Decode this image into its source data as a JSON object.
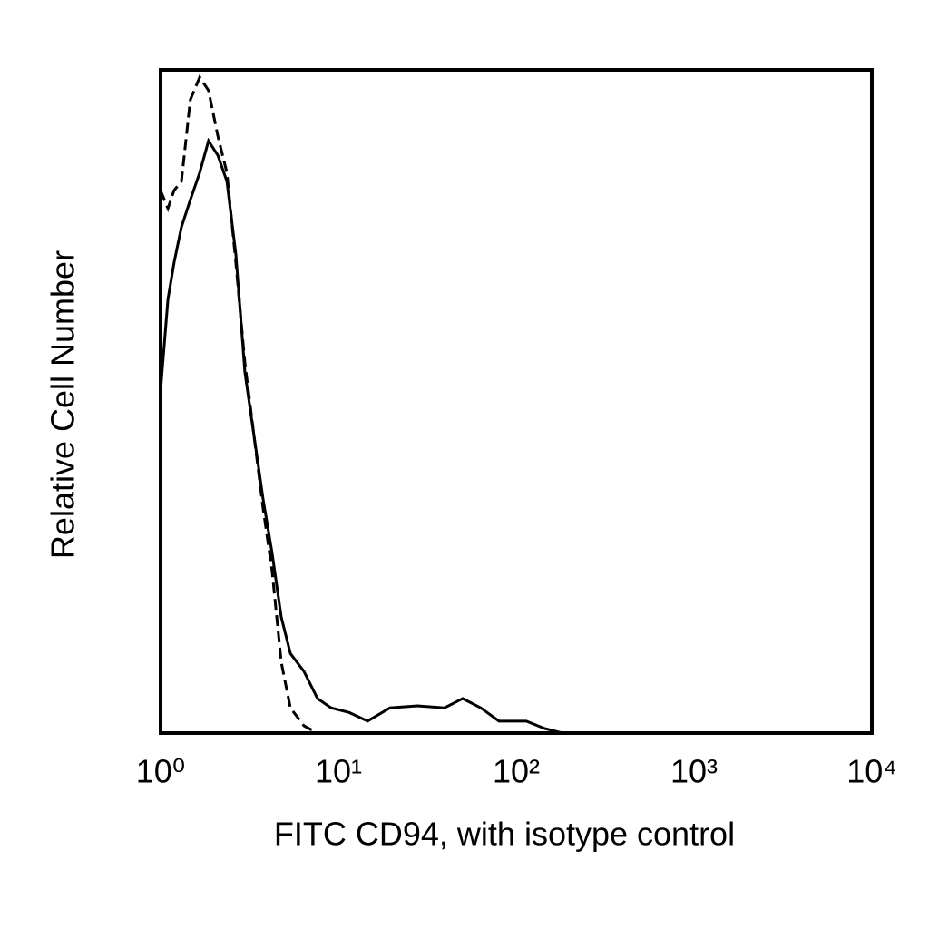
{
  "chart_data": {
    "type": "line",
    "x_label": "FITC CD94, with isotype control",
    "y_label": "Relative Cell Number",
    "x": [
      1.0,
      1.1,
      1.19,
      1.31,
      1.47,
      1.66,
      1.86,
      2.1,
      2.36,
      2.65,
      2.98,
      3.35,
      3.77,
      4.24,
      4.77,
      5.37,
      6.4,
      7.63,
      9.1,
      11.5,
      14.6,
      19.5,
      27.8,
      39.5,
      50.0,
      63.2,
      80.0,
      114,
      144,
      182
    ],
    "series": [
      {
        "color": "#000000",
        "style": "solid",
        "values": [
          51.7,
          65.4,
          70.9,
          76.3,
          80.4,
          84.5,
          89.3,
          87.1,
          83.2,
          72.2,
          54.4,
          44.9,
          35.3,
          27.1,
          17.5,
          12.0,
          9.3,
          5.2,
          3.8,
          3.1,
          1.8,
          3.8,
          4.1,
          3.8,
          5.2,
          3.8,
          1.8,
          1.8,
          0.7,
          0
        ]
      },
      {
        "color": "#000000",
        "style": "dashed",
        "values": [
          81.8,
          79.1,
          81.8,
          83.2,
          95.5,
          98.9,
          96.9,
          90.0,
          84.5,
          70.9,
          55.8,
          44.9,
          33.9,
          24.4,
          10.7,
          3.8,
          1.1,
          0,
          null,
          null,
          null,
          null,
          null,
          null,
          null,
          null,
          null,
          null,
          null,
          null
        ]
      }
    ],
    "xscale": "log",
    "xlim": [
      1,
      10000
    ],
    "xticks": [
      {
        "value": 1,
        "label": "10⁰"
      },
      {
        "value": 10,
        "label": "10¹"
      },
      {
        "value": 100,
        "label": "10²"
      },
      {
        "value": 1000,
        "label": "10³"
      },
      {
        "value": 10000,
        "label": "10⁴"
      }
    ],
    "ylim": [
      0,
      100
    ]
  }
}
